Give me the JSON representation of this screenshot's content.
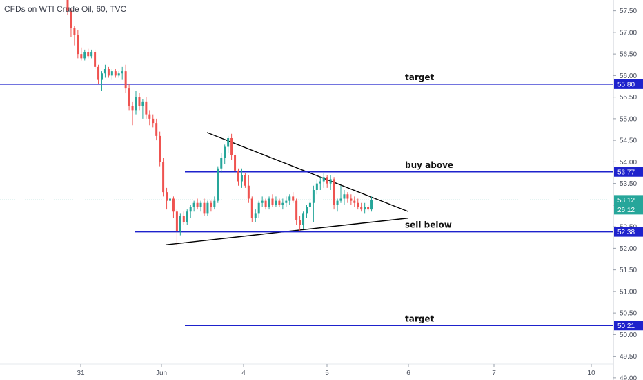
{
  "title": "CFDs on WTI Crude Oil, 60, TVC",
  "colors": {
    "up": "#26a69a",
    "down": "#ef5350",
    "level": "#1e22cc",
    "trend": "#000000",
    "axis_bg": "#ffffff",
    "last_price": "#26a69a"
  },
  "chart_data": {
    "type": "candlestick",
    "title": "CFDs on WTI Crude Oil, 60, TVC",
    "ylim": [
      48.95,
      57.75
    ],
    "y_ticks": [
      "57.50",
      "57.00",
      "56.50",
      "56.00",
      "55.50",
      "55.00",
      "54.50",
      "54.00",
      "53.50",
      "53.00",
      "52.50",
      "52.00",
      "51.50",
      "51.00",
      "50.50",
      "50.00",
      "49.50",
      "49.00"
    ],
    "x_ticks": [
      "31",
      "Jun",
      "4",
      "5",
      "6",
      "7",
      "10"
    ],
    "levels": [
      {
        "label": "target",
        "price": 55.8,
        "tag": "55.80"
      },
      {
        "label": "buy above",
        "price": 53.77,
        "tag": "53.77"
      },
      {
        "label": "sell below",
        "price": 52.38,
        "tag": "52.38"
      },
      {
        "label": "target",
        "price": 50.21,
        "tag": "50.21"
      }
    ],
    "last_price": {
      "price": 53.12,
      "tag": "53.12",
      "countdown": "26:12"
    },
    "trendlines": [
      {
        "name": "upper",
        "from": [
          54.68,
          0.0
        ],
        "to": [
          52.85,
          1.0
        ]
      },
      {
        "name": "lower",
        "from": [
          52.08,
          0.0
        ],
        "to": [
          52.7,
          1.0
        ]
      }
    ],
    "candles": [
      [
        57.9,
        57.95,
        57.4,
        57.5
      ],
      [
        57.5,
        57.55,
        56.9,
        57.1
      ],
      [
        57.1,
        57.15,
        56.7,
        56.95
      ],
      [
        56.95,
        57.05,
        56.4,
        56.5
      ],
      [
        56.5,
        56.65,
        56.35,
        56.4
      ],
      [
        56.4,
        56.6,
        56.35,
        56.55
      ],
      [
        56.55,
        56.62,
        56.4,
        56.45
      ],
      [
        56.45,
        56.6,
        56.4,
        56.55
      ],
      [
        56.55,
        56.6,
        56.15,
        56.2
      ],
      [
        56.2,
        56.25,
        55.8,
        55.9
      ],
      [
        55.9,
        56.1,
        55.65,
        56.05
      ],
      [
        56.05,
        56.25,
        55.95,
        56.15
      ],
      [
        56.15,
        56.2,
        55.95,
        56.0
      ],
      [
        56.0,
        56.15,
        55.9,
        56.1
      ],
      [
        56.1,
        56.15,
        55.95,
        56.0
      ],
      [
        56.0,
        56.1,
        55.95,
        56.05
      ],
      [
        56.05,
        56.2,
        55.9,
        56.1
      ],
      [
        56.1,
        56.25,
        55.6,
        55.7
      ],
      [
        55.7,
        55.8,
        55.2,
        55.3
      ],
      [
        55.3,
        55.4,
        54.85,
        55.2
      ],
      [
        55.2,
        55.65,
        55.1,
        55.5
      ],
      [
        55.5,
        55.6,
        55.2,
        55.3
      ],
      [
        55.3,
        55.45,
        55.0,
        55.4
      ],
      [
        55.4,
        55.5,
        55.0,
        55.1
      ],
      [
        55.1,
        55.2,
        54.85,
        55.0
      ],
      [
        55.0,
        55.1,
        54.8,
        54.9
      ],
      [
        54.9,
        55.0,
        54.5,
        54.6
      ],
      [
        54.6,
        54.7,
        53.9,
        54.0
      ],
      [
        54.0,
        54.1,
        53.2,
        53.3
      ],
      [
        53.3,
        53.4,
        52.9,
        53.1
      ],
      [
        53.1,
        53.25,
        52.95,
        53.15
      ],
      [
        53.15,
        53.2,
        52.7,
        52.85
      ],
      [
        52.85,
        52.9,
        52.05,
        52.4
      ],
      [
        52.4,
        52.8,
        52.3,
        52.75
      ],
      [
        52.75,
        52.85,
        52.55,
        52.6
      ],
      [
        52.6,
        52.9,
        52.55,
        52.85
      ],
      [
        52.85,
        53.0,
        52.7,
        52.95
      ],
      [
        52.95,
        53.1,
        52.85,
        53.05
      ],
      [
        53.05,
        53.15,
        52.9,
        52.95
      ],
      [
        52.95,
        53.1,
        52.85,
        53.05
      ],
      [
        53.05,
        53.15,
        52.75,
        52.8
      ],
      [
        52.8,
        53.1,
        52.75,
        53.05
      ],
      [
        53.05,
        53.1,
        52.85,
        52.95
      ],
      [
        52.95,
        53.2,
        52.9,
        53.1
      ],
      [
        53.1,
        53.9,
        53.05,
        53.85
      ],
      [
        53.85,
        54.2,
        53.75,
        54.1
      ],
      [
        54.1,
        54.4,
        53.95,
        54.35
      ],
      [
        54.35,
        54.6,
        54.2,
        54.55
      ],
      [
        54.55,
        54.65,
        54.05,
        54.15
      ],
      [
        54.15,
        54.2,
        53.7,
        53.8
      ],
      [
        53.8,
        53.85,
        53.45,
        53.55
      ],
      [
        53.55,
        53.85,
        53.4,
        53.7
      ],
      [
        53.7,
        53.75,
        53.4,
        53.45
      ],
      [
        53.45,
        53.7,
        53.05,
        53.15
      ],
      [
        53.15,
        53.2,
        52.6,
        52.7
      ],
      [
        52.7,
        52.9,
        52.6,
        52.8
      ],
      [
        52.8,
        53.1,
        52.7,
        53.05
      ],
      [
        53.05,
        53.2,
        52.95,
        53.1
      ],
      [
        53.1,
        53.15,
        52.9,
        52.95
      ],
      [
        52.95,
        53.2,
        52.9,
        53.15
      ],
      [
        53.15,
        53.25,
        52.95,
        53.0
      ],
      [
        53.0,
        53.2,
        52.95,
        53.1
      ],
      [
        53.1,
        53.15,
        52.95,
        53.0
      ],
      [
        53.0,
        53.15,
        52.9,
        53.05
      ],
      [
        53.05,
        53.2,
        52.95,
        53.1
      ],
      [
        53.1,
        53.25,
        53.0,
        53.2
      ],
      [
        53.2,
        53.3,
        53.05,
        53.1
      ],
      [
        53.1,
        53.15,
        52.55,
        52.65
      ],
      [
        52.65,
        52.75,
        52.4,
        52.55
      ],
      [
        52.55,
        52.85,
        52.45,
        52.8
      ],
      [
        52.8,
        53.0,
        52.7,
        52.95
      ],
      [
        52.95,
        53.15,
        52.85,
        53.05
      ],
      [
        53.05,
        53.45,
        52.6,
        53.35
      ],
      [
        53.35,
        53.6,
        53.25,
        53.5
      ],
      [
        53.5,
        53.65,
        53.35,
        53.55
      ],
      [
        53.55,
        53.75,
        53.4,
        53.65
      ],
      [
        53.65,
        53.7,
        53.4,
        53.5
      ],
      [
        53.5,
        53.7,
        53.35,
        53.6
      ],
      [
        53.6,
        53.65,
        52.9,
        53.0
      ],
      [
        53.0,
        53.15,
        52.85,
        53.1
      ],
      [
        53.1,
        53.45,
        53.05,
        53.15
      ],
      [
        53.15,
        53.35,
        53.0,
        53.25
      ],
      [
        53.25,
        53.3,
        53.05,
        53.15
      ],
      [
        53.15,
        53.25,
        53.0,
        53.1
      ],
      [
        53.1,
        53.2,
        52.95,
        53.05
      ],
      [
        53.05,
        53.15,
        52.9,
        52.95
      ],
      [
        52.95,
        53.05,
        52.85,
        52.9
      ],
      [
        52.9,
        53.05,
        52.8,
        52.95
      ],
      [
        52.95,
        53.0,
        52.85,
        52.9
      ],
      [
        52.9,
        53.2,
        52.85,
        53.12
      ]
    ]
  }
}
